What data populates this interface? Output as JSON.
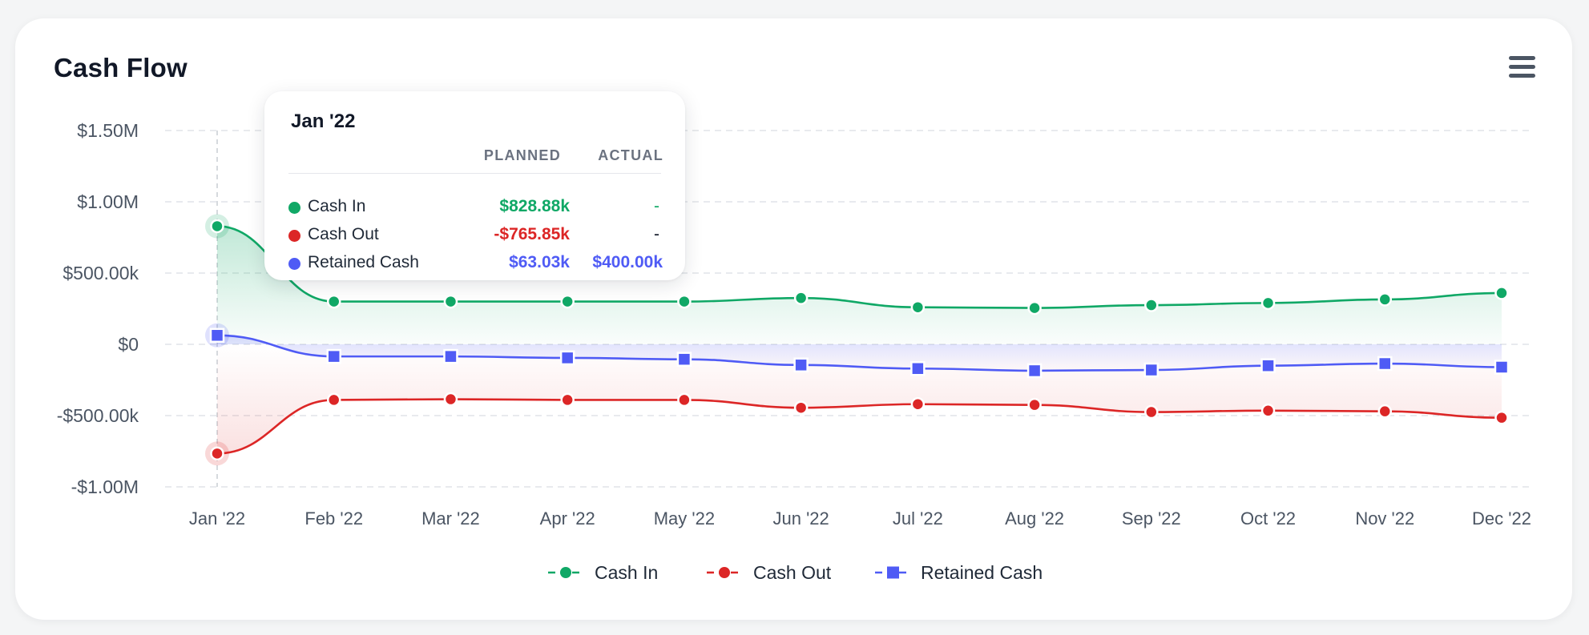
{
  "card": {
    "title": "Cash Flow"
  },
  "colors": {
    "cash_in": "#10a866",
    "cash_out": "#dc2626",
    "retained_cash": "#4f5bf5",
    "grid": "#e1e4e8"
  },
  "icons": {
    "menu": "hamburger-menu-icon"
  },
  "tooltip": {
    "title": "Jan '22",
    "col_planned": "PLANNED",
    "col_actual": "ACTUAL",
    "rows": [
      {
        "label": "Cash In",
        "planned": "$828.88k",
        "actual": "-"
      },
      {
        "label": "Cash Out",
        "planned": "-$765.85k",
        "actual": "-"
      },
      {
        "label": "Retained Cash",
        "planned": "$63.03k",
        "actual": "$400.00k"
      }
    ]
  },
  "chart_data": {
    "type": "line",
    "title": "Cash Flow",
    "xlabel": "",
    "ylabel": "",
    "categories": [
      "Jan '22",
      "Feb '22",
      "Mar '22",
      "Apr '22",
      "May '22",
      "Jun '22",
      "Jul '22",
      "Aug '22",
      "Sep '22",
      "Oct '22",
      "Nov '22",
      "Dec '22"
    ],
    "y_ticks": [
      {
        "value": 1500000,
        "label": "$1.50M"
      },
      {
        "value": 1000000,
        "label": "$1.00M"
      },
      {
        "value": 500000,
        "label": "$500.00k"
      },
      {
        "value": 0,
        "label": "$0"
      },
      {
        "value": -500000,
        "label": "-$500.00k"
      },
      {
        "value": -1000000,
        "label": "-$1.00M"
      }
    ],
    "ylim": [
      -1000000,
      1500000
    ],
    "grid": true,
    "legend_position": "bottom-center",
    "highlighted_category": "Jan '22",
    "series": [
      {
        "name": "Cash In",
        "marker": "circle",
        "values": [
          828880,
          300000,
          300000,
          300000,
          300000,
          325000,
          260000,
          255000,
          275000,
          290000,
          315000,
          360000
        ]
      },
      {
        "name": "Cash Out",
        "marker": "circle",
        "values": [
          -765850,
          -390000,
          -385000,
          -390000,
          -390000,
          -445000,
          -420000,
          -425000,
          -475000,
          -465000,
          -470000,
          -515000
        ]
      },
      {
        "name": "Retained Cash",
        "marker": "square",
        "values": [
          63030,
          -85000,
          -85000,
          -95000,
          -105000,
          -145000,
          -170000,
          -185000,
          -180000,
          -150000,
          -135000,
          -160000
        ]
      }
    ]
  }
}
